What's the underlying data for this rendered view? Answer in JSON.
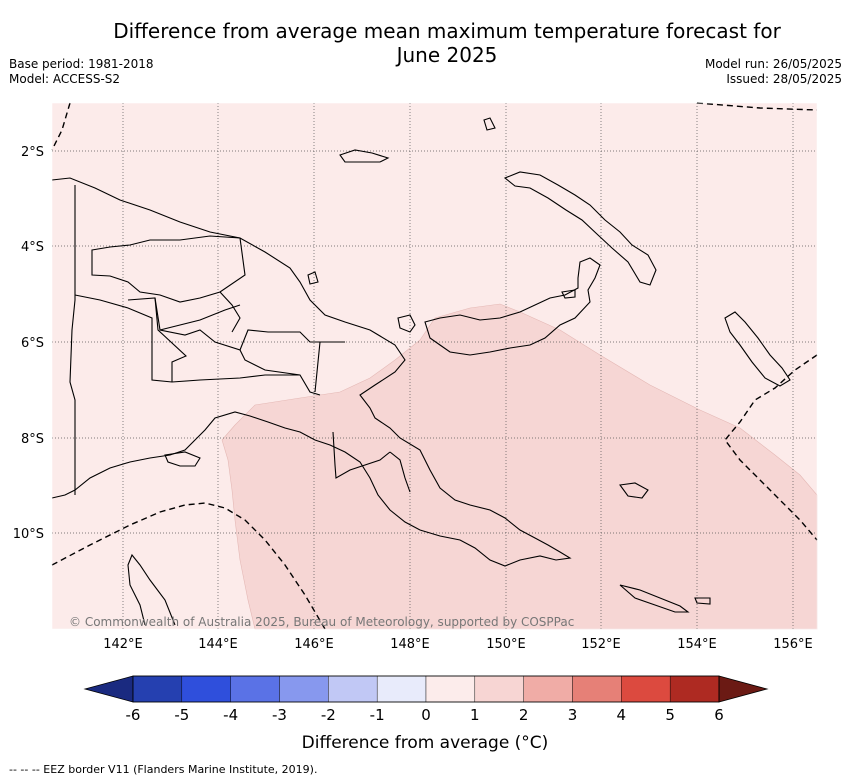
{
  "title_line1": "Difference from average mean maximum temperature forecast for",
  "title_line2": "June 2025",
  "base_period": "Base period: 1981-2018",
  "model": "Model: ACCESS-S2",
  "model_run": "Model run: 26/05/2025",
  "issued": "Issued: 28/05/2025",
  "copyright": "© Commonwealth of Australia 2025, Bureau of Meteorology, supported by COSPPac",
  "lat_labels": [
    "2°S",
    "4°S",
    "6°S",
    "8°S",
    "10°S"
  ],
  "lon_labels": [
    "142°E",
    "144°E",
    "146°E",
    "148°E",
    "150°E",
    "152°E",
    "154°E",
    "156°E"
  ],
  "colorbar": {
    "title": "Difference from average (°C)",
    "ticks": [
      "-6",
      "-5",
      "-4",
      "-3",
      "-2",
      "-1",
      "0",
      "1",
      "2",
      "3",
      "4",
      "5",
      "6"
    ],
    "colors": [
      "#1a2a80",
      "#2540b0",
      "#2f4fdc",
      "#5a72e6",
      "#8798ee",
      "#c1c8f5",
      "#e8ebfb",
      "#fceceb",
      "#f7d5d3",
      "#f0aca6",
      "#e68077",
      "#dc4a3f",
      "#ae2a22",
      "#6b1a14"
    ]
  },
  "map_colors": {
    "background": "#fcebea",
    "anomaly_zone": "#f6d6d4",
    "land_outline": "#000000"
  },
  "footer": "-- -- -- EEZ border V11 (Flanders Marine Institute, 2019)."
}
